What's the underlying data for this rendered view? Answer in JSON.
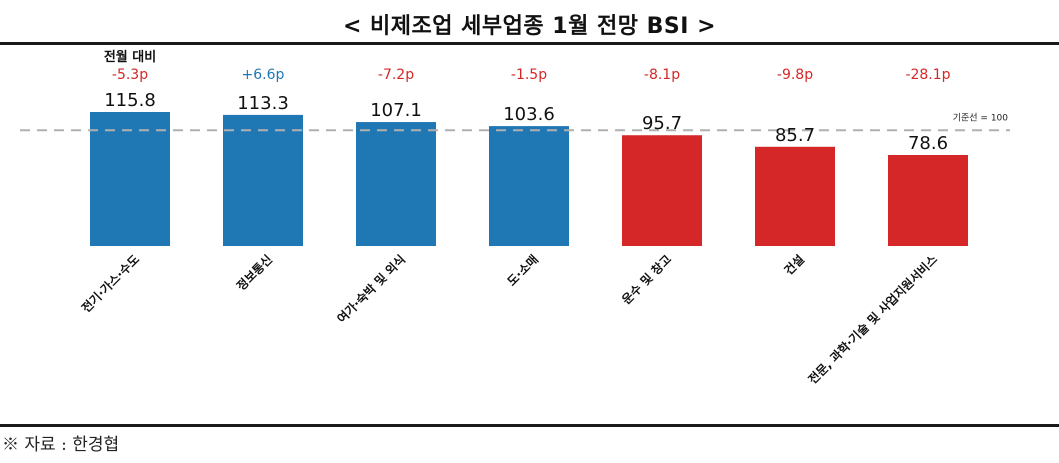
{
  "title": "< 비제조업 세부업종 1월 전망 BSI >",
  "source": "※ 자료 : 한경협",
  "colors": {
    "above_baseline": "#1f77b4",
    "below_baseline": "#d62728",
    "change_positive": "#1f77b4",
    "change_negative": "#d62728",
    "baseline_line": "#b0b0b0"
  },
  "chart_data": {
    "type": "bar",
    "categories": [
      "전기·가스·수도",
      "정보통신",
      "여가·숙박 및 외식",
      "도·소매",
      "운수 및 창고",
      "건설",
      "전문, 과학·기술 및 사업지원서비스"
    ],
    "values": [
      115.8,
      113.3,
      107.1,
      103.6,
      95.7,
      85.7,
      78.6
    ],
    "value_labels": [
      "115.8",
      "113.3",
      "107.1",
      "103.6",
      "95.7",
      "85.7",
      "78.6"
    ],
    "change_header": "전월 대비",
    "changes": [
      "-5.3p",
      "+6.6p",
      "-7.2p",
      "-1.5p",
      "-8.1p",
      "-9.8p",
      "-28.1p"
    ],
    "baseline": 100,
    "baseline_label": "기준선 = 100",
    "grid": false,
    "legend": "none"
  }
}
